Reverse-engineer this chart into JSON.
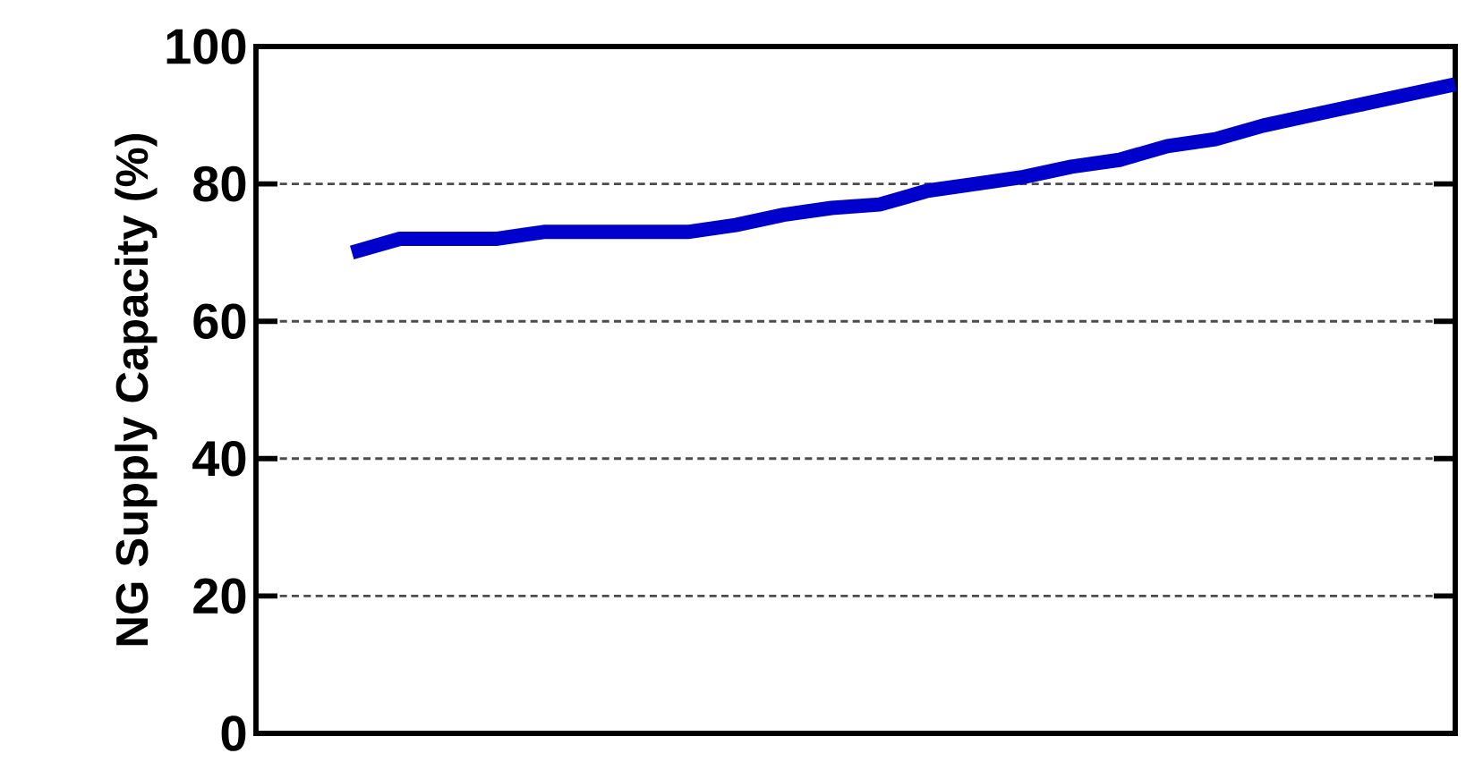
{
  "chart_data": {
    "type": "line",
    "ylabel": "NG Supply Capacity (%)",
    "categories": [
      null,
      null,
      null,
      null,
      null,
      null,
      null,
      null,
      null,
      null,
      null,
      null,
      null,
      null,
      null,
      null,
      null,
      null,
      null,
      null,
      null,
      null,
      null,
      null,
      null,
      null
    ],
    "ylim": [
      0,
      100
    ],
    "yticks": [
      0,
      20,
      40,
      60,
      80,
      100
    ],
    "grid": "y",
    "series": [
      {
        "color": "#0000cc",
        "values": [
          null,
          null,
          70,
          72,
          72,
          72,
          73,
          73,
          73,
          73,
          74,
          75.5,
          76.5,
          77,
          79,
          80,
          81,
          82.5,
          83.5,
          85.5,
          86.5,
          88.5,
          90,
          91.5,
          93,
          94.5
        ]
      }
    ]
  }
}
